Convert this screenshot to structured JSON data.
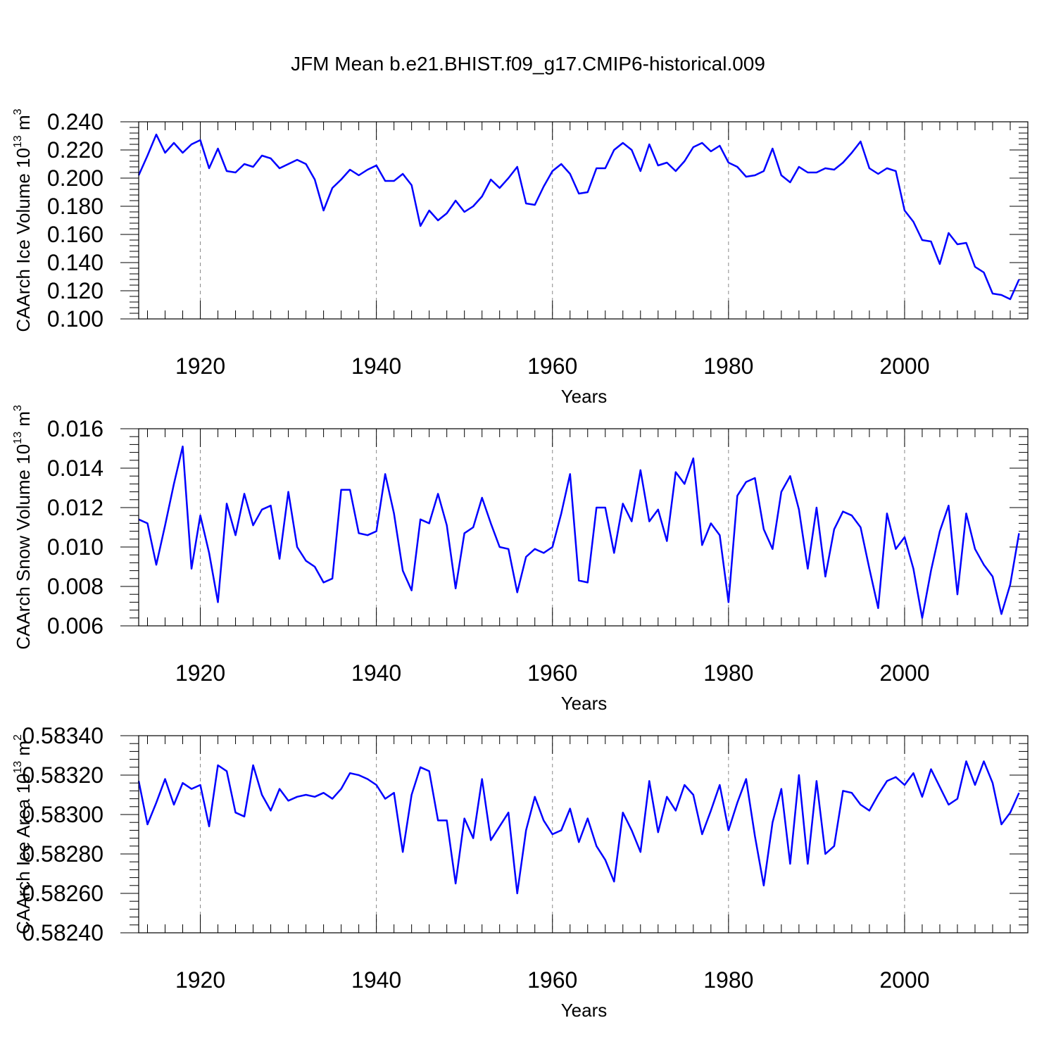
{
  "title": "JFM Mean b.e21.BHIST.f09_g17.CMIP6-historical.009",
  "series_color": "#0000ff",
  "chart_data": [
    {
      "type": "line",
      "name": "ice-volume",
      "ylabel": "CAArch Ice Volume 10",
      "ylabel_exp": "13",
      "ylabel_unit": " m",
      "ylabel_unit_exp": "3",
      "xlabel": "Years",
      "xlim": [
        1913,
        2014
      ],
      "ylim": [
        0.1,
        0.24
      ],
      "yticks": [
        "0.100",
        "0.120",
        "0.140",
        "0.160",
        "0.180",
        "0.200",
        "0.220",
        "0.240"
      ],
      "xticks": [
        "1920",
        "1940",
        "1960",
        "1980",
        "2000"
      ],
      "start_year": 1913,
      "values": [
        0.202,
        0.216,
        0.231,
        0.218,
        0.225,
        0.218,
        0.224,
        0.227,
        0.207,
        0.221,
        0.205,
        0.204,
        0.21,
        0.208,
        0.216,
        0.214,
        0.207,
        0.21,
        0.213,
        0.21,
        0.199,
        0.177,
        0.193,
        0.199,
        0.206,
        0.202,
        0.206,
        0.209,
        0.198,
        0.198,
        0.203,
        0.195,
        0.166,
        0.177,
        0.17,
        0.175,
        0.184,
        0.176,
        0.18,
        0.187,
        0.199,
        0.193,
        0.2,
        0.208,
        0.182,
        0.181,
        0.194,
        0.205,
        0.21,
        0.203,
        0.189,
        0.19,
        0.207,
        0.207,
        0.22,
        0.225,
        0.22,
        0.205,
        0.224,
        0.209,
        0.211,
        0.205,
        0.212,
        0.222,
        0.225,
        0.219,
        0.223,
        0.211,
        0.208,
        0.201,
        0.202,
        0.205,
        0.221,
        0.202,
        0.197,
        0.208,
        0.204,
        0.204,
        0.207,
        0.206,
        0.211,
        0.218,
        0.226,
        0.207,
        0.203,
        0.207,
        0.205,
        0.177,
        0.169,
        0.156,
        0.155,
        0.139,
        0.161,
        0.153,
        0.154,
        0.137,
        0.133,
        0.118,
        0.117,
        0.114,
        0.128
      ]
    },
    {
      "type": "line",
      "name": "snow-volume",
      "ylabel": "CAArch Snow Volume 10",
      "ylabel_exp": "13",
      "ylabel_unit": " m",
      "ylabel_unit_exp": "3",
      "xlabel": "Years",
      "xlim": [
        1913,
        2014
      ],
      "ylim": [
        0.006,
        0.016
      ],
      "yticks": [
        "0.006",
        "0.008",
        "0.010",
        "0.012",
        "0.014",
        "0.016"
      ],
      "xticks": [
        "1920",
        "1940",
        "1960",
        "1980",
        "2000"
      ],
      "start_year": 1913,
      "values": [
        0.0114,
        0.0112,
        0.0091,
        0.0111,
        0.0132,
        0.0151,
        0.0089,
        0.0116,
        0.0097,
        0.0072,
        0.0122,
        0.0106,
        0.0127,
        0.0111,
        0.0119,
        0.0121,
        0.0094,
        0.0128,
        0.01,
        0.0093,
        0.009,
        0.0082,
        0.0084,
        0.0129,
        0.0129,
        0.0107,
        0.0106,
        0.0108,
        0.0137,
        0.0117,
        0.0088,
        0.0078,
        0.0114,
        0.0112,
        0.0127,
        0.0111,
        0.0079,
        0.0107,
        0.011,
        0.0125,
        0.0112,
        0.01,
        0.0099,
        0.0077,
        0.0095,
        0.0099,
        0.0097,
        0.01,
        0.0117,
        0.0137,
        0.0083,
        0.0082,
        0.012,
        0.012,
        0.0097,
        0.0122,
        0.0113,
        0.0139,
        0.0113,
        0.0119,
        0.0103,
        0.0138,
        0.0132,
        0.0145,
        0.0101,
        0.0112,
        0.0106,
        0.0072,
        0.0126,
        0.0133,
        0.0135,
        0.0109,
        0.0099,
        0.0128,
        0.0136,
        0.0119,
        0.0089,
        0.012,
        0.0085,
        0.0109,
        0.0118,
        0.0116,
        0.011,
        0.0089,
        0.0069,
        0.0117,
        0.0099,
        0.0105,
        0.0089,
        0.0064,
        0.0088,
        0.0108,
        0.0121,
        0.0076,
        0.0117,
        0.0099,
        0.0091,
        0.0085,
        0.0066,
        0.0081,
        0.0107
      ]
    },
    {
      "type": "line",
      "name": "ice-area",
      "ylabel": "CAArch Ice Area 10",
      "ylabel_exp": "13",
      "ylabel_unit": " m",
      "ylabel_unit_exp": "2",
      "xlabel": "Years",
      "xlim": [
        1913,
        2014
      ],
      "ylim": [
        0.5824,
        0.5834
      ],
      "yticks": [
        "0.58240",
        "0.58260",
        "0.58280",
        "0.58300",
        "0.58320",
        "0.58340"
      ],
      "xticks": [
        "1920",
        "1940",
        "1960",
        "1980",
        "2000"
      ],
      "start_year": 1913,
      "values": [
        0.58317,
        0.58295,
        0.58306,
        0.58318,
        0.58305,
        0.58316,
        0.58313,
        0.58315,
        0.58294,
        0.58325,
        0.58322,
        0.58301,
        0.58299,
        0.58325,
        0.5831,
        0.58302,
        0.58313,
        0.58307,
        0.58309,
        0.5831,
        0.58309,
        0.58311,
        0.58308,
        0.58313,
        0.58321,
        0.5832,
        0.58318,
        0.58315,
        0.58308,
        0.58311,
        0.58281,
        0.5831,
        0.58324,
        0.58322,
        0.58297,
        0.58297,
        0.58265,
        0.58298,
        0.58288,
        0.58318,
        0.58287,
        0.58294,
        0.58301,
        0.5826,
        0.58292,
        0.58309,
        0.58297,
        0.5829,
        0.58292,
        0.58303,
        0.58286,
        0.58298,
        0.58284,
        0.58277,
        0.58266,
        0.58301,
        0.58292,
        0.58281,
        0.58317,
        0.58291,
        0.58309,
        0.58302,
        0.58315,
        0.5831,
        0.5829,
        0.58302,
        0.58315,
        0.58292,
        0.58306,
        0.58318,
        0.58289,
        0.58264,
        0.58296,
        0.58313,
        0.58275,
        0.5832,
        0.58275,
        0.58317,
        0.5828,
        0.58284,
        0.58312,
        0.58311,
        0.58305,
        0.58302,
        0.5831,
        0.58317,
        0.58319,
        0.58315,
        0.58321,
        0.58309,
        0.58323,
        0.58314,
        0.58305,
        0.58308,
        0.58327,
        0.58315,
        0.58327,
        0.58316,
        0.58295,
        0.58301,
        0.58311
      ]
    }
  ]
}
